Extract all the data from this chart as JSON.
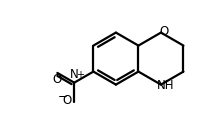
{
  "bg_color": "#ffffff",
  "line_color": "#000000",
  "line_width": 1.6,
  "fig_width": 2.24,
  "fig_height": 1.38,
  "dpi": 100,
  "xlim": [
    -3.5,
    3.2
  ],
  "ylim": [
    -3.0,
    2.2
  ]
}
